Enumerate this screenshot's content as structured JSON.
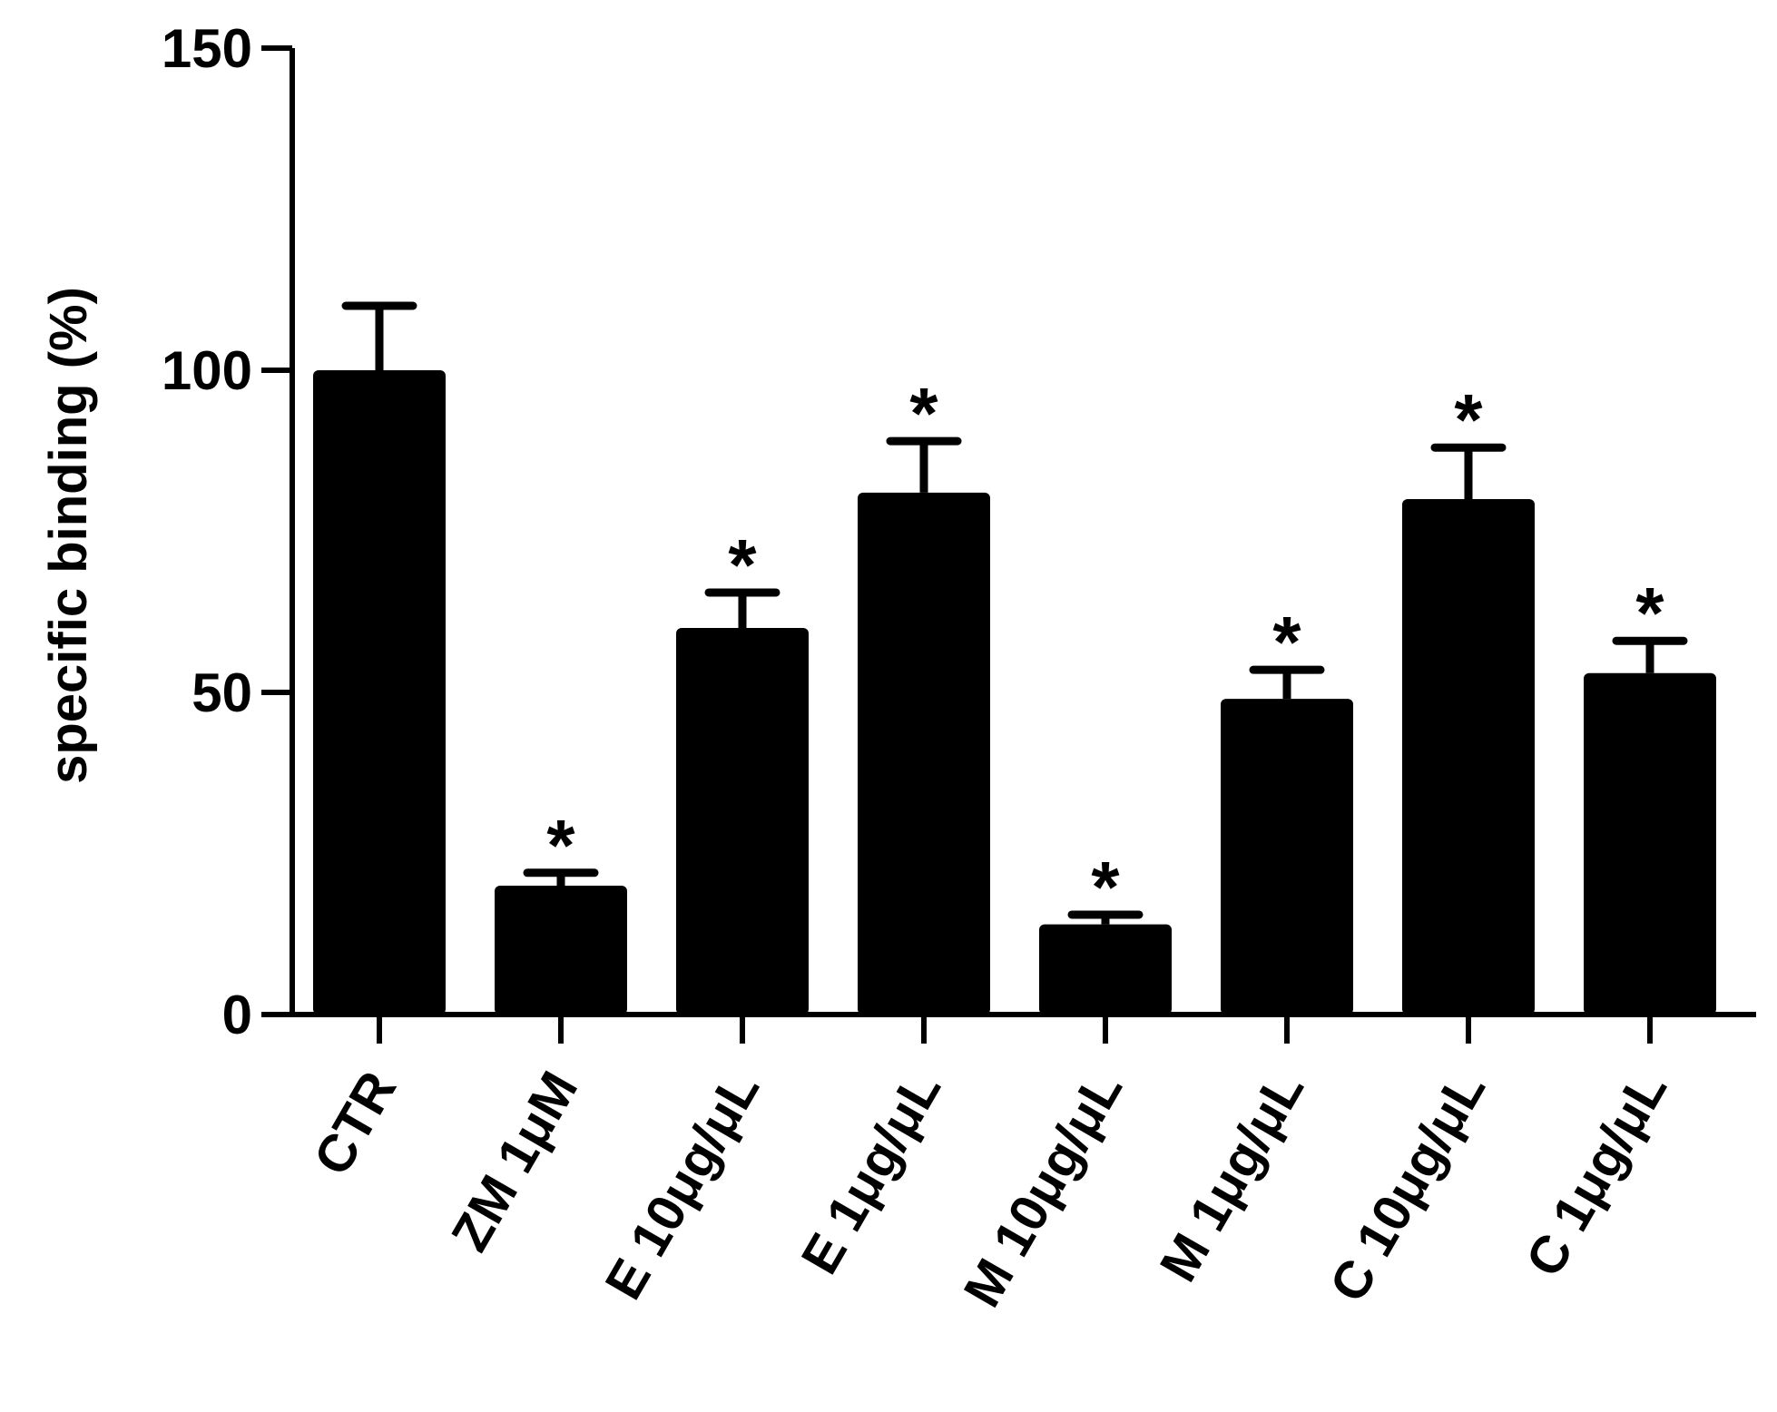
{
  "chart_data": {
    "type": "bar",
    "title": "",
    "xlabel": "",
    "ylabel": "specific binding (%)",
    "ylim": [
      0,
      150
    ],
    "yticks": [
      "0",
      "50",
      "100",
      "150"
    ],
    "categories": [
      "CTR",
      "ZM 1μM",
      "E 10μg/μL",
      "E 1μg/μL",
      "M 10μg/μL",
      "M 1μg/μL",
      "C 10μg/μL",
      "C 1μg/μL"
    ],
    "values": [
      100,
      20,
      60,
      81,
      14,
      49,
      80,
      53
    ],
    "errors": [
      10,
      2,
      5.5,
      8,
      1.5,
      4.5,
      8,
      5
    ],
    "annotations": [
      "",
      "*",
      "*",
      "*",
      "*",
      "*",
      "*",
      "*"
    ],
    "grid": false,
    "legend": "none",
    "colors": {
      "bar": "#000000",
      "axis": "#000000"
    }
  }
}
